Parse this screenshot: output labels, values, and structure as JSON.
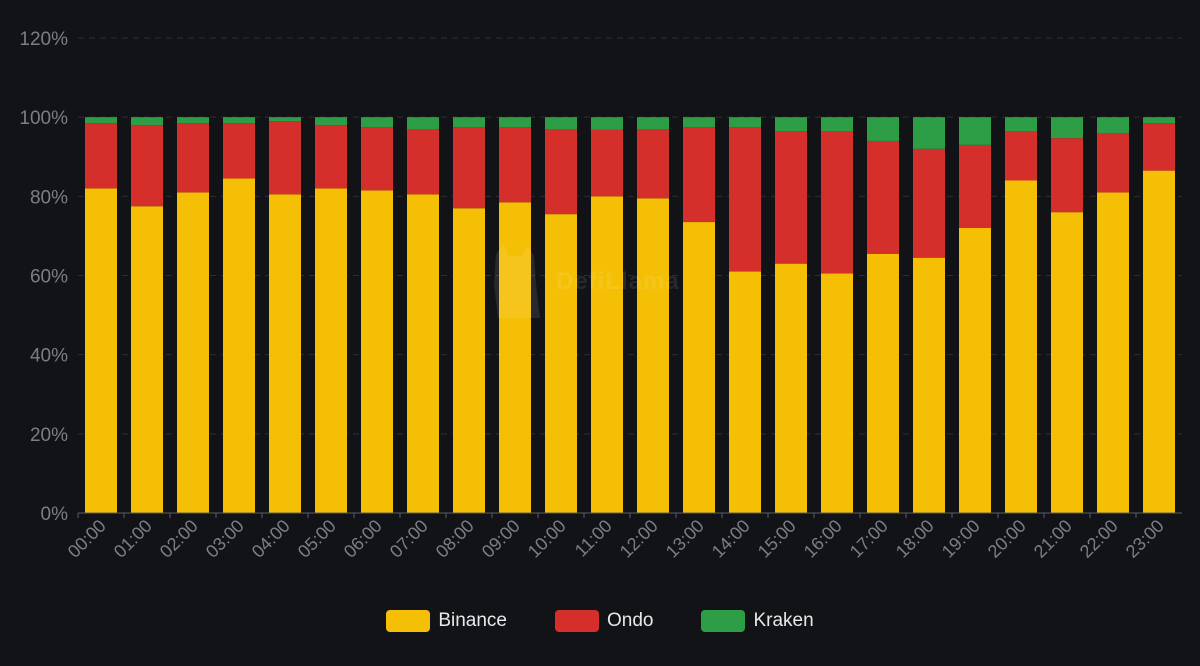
{
  "chart_data": {
    "type": "bar",
    "stacked": true,
    "categories": [
      "00:00",
      "01:00",
      "02:00",
      "03:00",
      "04:00",
      "05:00",
      "06:00",
      "07:00",
      "08:00",
      "09:00",
      "10:00",
      "11:00",
      "12:00",
      "13:00",
      "14:00",
      "15:00",
      "16:00",
      "17:00",
      "18:00",
      "19:00",
      "20:00",
      "21:00",
      "22:00",
      "23:00"
    ],
    "series": [
      {
        "name": "Binance",
        "color": "#f5bf06",
        "values": [
          82,
          77.5,
          81,
          84.5,
          80.5,
          82,
          81.5,
          80.5,
          77,
          78.5,
          75.5,
          80,
          79.5,
          73.5,
          61,
          63,
          60.5,
          65.5,
          64.5,
          72,
          84,
          76,
          81,
          86.5
        ]
      },
      {
        "name": "Ondo",
        "color": "#d42f2a",
        "values": [
          16.5,
          20.5,
          17.5,
          14,
          18.5,
          16,
          16,
          16.5,
          20.5,
          19,
          21.5,
          16.8,
          17.5,
          24,
          36.5,
          33.5,
          36,
          28.5,
          27.5,
          21,
          12.5,
          18.7,
          15,
          12
        ]
      },
      {
        "name": "Kraken",
        "color": "#2e9e46",
        "values": [
          1.5,
          2,
          1.5,
          1.5,
          1,
          2,
          2.5,
          3,
          2.5,
          2.5,
          3,
          3.2,
          3,
          2.5,
          2.5,
          3.5,
          3.5,
          6,
          8,
          7,
          3.5,
          5.3,
          4,
          1.5
        ]
      }
    ],
    "y_ticks": [
      "0%",
      "20%",
      "40%",
      "60%",
      "80%",
      "100%",
      "120%"
    ],
    "ylim": [
      0,
      120
    ],
    "legend_position": "bottom-center",
    "grid": true
  },
  "watermark": {
    "text": "DefiLlama",
    "icon": "llama-icon"
  }
}
